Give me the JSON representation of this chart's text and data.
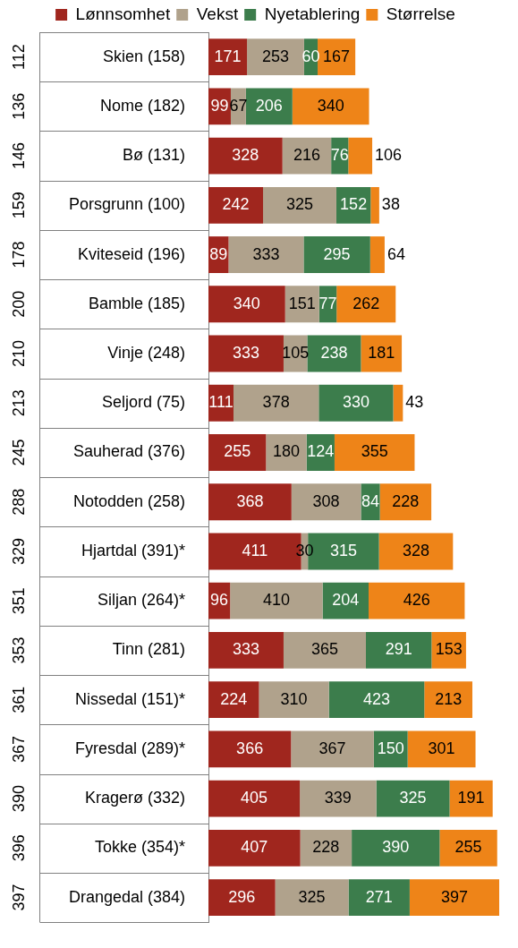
{
  "chart_data": {
    "type": "bar",
    "orientation": "horizontal",
    "stacked": true,
    "data_labels": true,
    "legend": "top",
    "categories": [
      "Skien (158)",
      "Nome (182)",
      "Bø (131)",
      "Porsgrunn (100)",
      "Kviteseid (196)",
      "Bamble (185)",
      "Vinje (248)",
      "Seljord (75)",
      "Sauherad (376)",
      "Notodden (258)",
      "Hjartdal (391)*",
      "Siljan (264)*",
      "Tinn (281)",
      "Nissedal (151)*",
      "Fyresdal (289)*",
      "Kragerø (332)",
      "Tokke (354)*",
      "Drangedal (384)"
    ],
    "series": [
      {
        "name": "Lønnsomhet",
        "color": "#a0261e",
        "values": [
          171,
          99,
          328,
          242,
          89,
          340,
          333,
          111,
          255,
          368,
          411,
          96,
          333,
          224,
          366,
          405,
          407,
          296
        ]
      },
      {
        "name": "Vekst",
        "color": "#b0a28c",
        "values": [
          253,
          67,
          216,
          325,
          333,
          151,
          105,
          378,
          180,
          308,
          30,
          410,
          365,
          310,
          367,
          339,
          228,
          325
        ]
      },
      {
        "name": "Nyetablering",
        "color": "#3c7d4c",
        "values": [
          60,
          206,
          76,
          152,
          295,
          77,
          238,
          330,
          124,
          84,
          315,
          204,
          291,
          423,
          150,
          325,
          390,
          271
        ]
      },
      {
        "name": "Størrelse",
        "color": "#ee8418",
        "values": [
          167,
          340,
          106,
          38,
          64,
          262,
          181,
          43,
          355,
          228,
          328,
          426,
          153,
          213,
          301,
          191,
          255,
          397
        ]
      }
    ],
    "annotations": [
      "112",
      "136",
      "146",
      "159",
      "178",
      "200",
      "210",
      "213",
      "245",
      "288",
      "329",
      "351",
      "353",
      "361",
      "367",
      "390",
      "396",
      "397"
    ]
  }
}
